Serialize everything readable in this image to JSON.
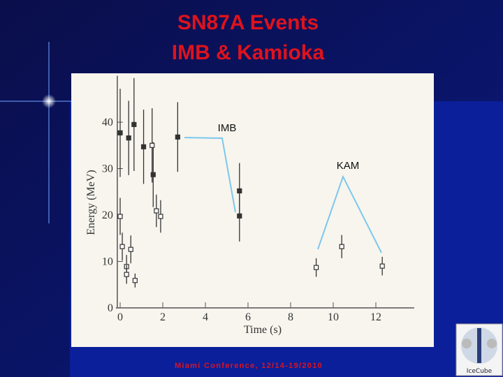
{
  "slide": {
    "title_lines": [
      "SN87A Events",
      "IMB & Kamioka"
    ],
    "footer": "Miami Conference, 12/14-19/2010"
  },
  "chart_data": {
    "type": "scatter",
    "xlabel": "Time (s)",
    "ylabel": "Energy (MeV)",
    "xlim": [
      -0.2,
      13.8
    ],
    "xticks": [
      0,
      2,
      4,
      6,
      8,
      10,
      12
    ],
    "ylim": [
      0,
      50
    ],
    "yticks": [
      0,
      10,
      20,
      30,
      40
    ],
    "series": [
      {
        "name": "IMB",
        "color": "#333333",
        "fill": "#333333",
        "x": [
          0,
          0.4,
          0.65,
          1.1,
          1.55,
          2.7,
          5.6,
          5.6
        ],
        "values": [
          37.7,
          36.6,
          39.5,
          34.7,
          28.7,
          36.8,
          25.2,
          19.8
        ],
        "errors": [
          9.5,
          8,
          10,
          8,
          7,
          7.5,
          6,
          5.5
        ]
      },
      {
        "name": "KAM",
        "color": "#333333",
        "fill": "#ffffff",
        "x": [
          0,
          0.1,
          0.3,
          0.3,
          0.5,
          0.7,
          1.5,
          1.7,
          1.9,
          9.2,
          10.4,
          12.3
        ],
        "values": [
          19.7,
          13.2,
          8.9,
          7.2,
          12.6,
          5.9,
          35.0,
          20.9,
          19.7,
          8.7,
          13.2,
          9.0
        ],
        "errors": [
          4,
          3,
          2.5,
          2,
          3,
          1.5,
          8,
          3.5,
          3.5,
          2,
          2.5,
          2
        ]
      }
    ]
  }
}
